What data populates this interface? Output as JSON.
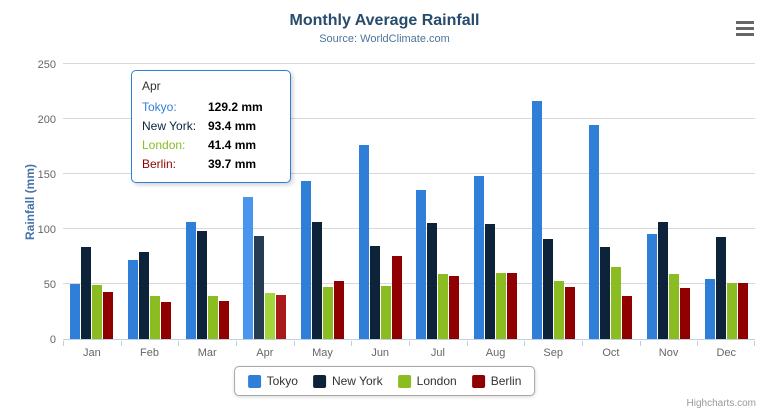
{
  "credit": "Highcharts.com",
  "chart_data": {
    "type": "bar",
    "title": "Monthly Average Rainfall",
    "subtitle": "Source: WorldClimate.com",
    "xlabel": "",
    "ylabel": "Rainfall (mm)",
    "ylim": [
      0,
      250
    ],
    "yticks": [
      0,
      50,
      100,
      150,
      200,
      250
    ],
    "grid": true,
    "legend_position": "bottom",
    "categories": [
      "Jan",
      "Feb",
      "Mar",
      "Apr",
      "May",
      "Jun",
      "Jul",
      "Aug",
      "Sep",
      "Oct",
      "Nov",
      "Dec"
    ],
    "series": [
      {
        "name": "Tokyo",
        "color": "#2f7ed8",
        "hover_color": "#4a96ef",
        "values": [
          49.9,
          71.5,
          106.4,
          129.2,
          144.0,
          176.0,
          135.6,
          148.5,
          216.4,
          194.1,
          95.6,
          54.4
        ]
      },
      {
        "name": "New York",
        "color": "#0d233a",
        "hover_color": "#263c53",
        "values": [
          83.6,
          78.8,
          98.5,
          93.4,
          106.0,
          84.5,
          105.0,
          104.3,
          91.2,
          83.5,
          106.6,
          92.3
        ]
      },
      {
        "name": "London",
        "color": "#8bbc21",
        "hover_color": "#a4d53a",
        "values": [
          48.9,
          38.8,
          39.3,
          41.4,
          47.0,
          48.3,
          59.0,
          59.6,
          52.4,
          65.2,
          59.3,
          51.2
        ]
      },
      {
        "name": "Berlin",
        "color": "#910000",
        "hover_color": "#aa1919",
        "values": [
          42.4,
          33.2,
          34.5,
          39.7,
          52.6,
          75.5,
          57.4,
          60.4,
          47.6,
          39.1,
          46.8,
          51.1
        ]
      }
    ],
    "hovered_category_index": 3,
    "tooltip": {
      "title": "Apr",
      "unit": "mm",
      "rows": [
        {
          "name": "Tokyo",
          "value": "129.2"
        },
        {
          "name": "New York",
          "value": "93.4"
        },
        {
          "name": "London",
          "value": "41.4"
        },
        {
          "name": "Berlin",
          "value": "39.7"
        }
      ]
    }
  }
}
